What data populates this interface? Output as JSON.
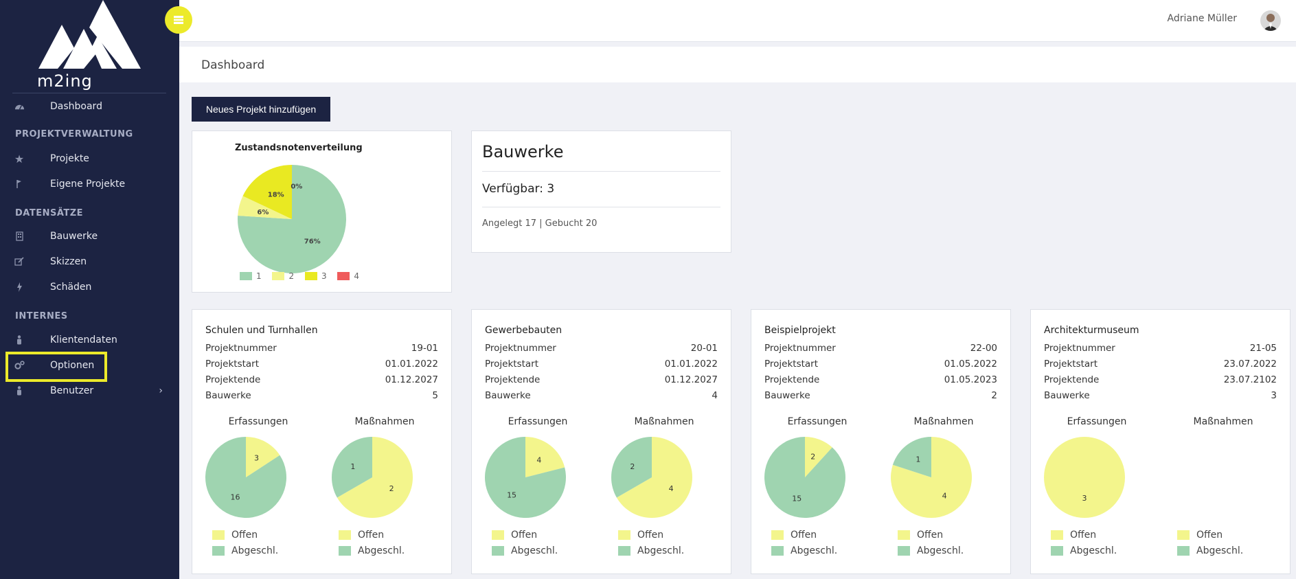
{
  "brand": {
    "name": "m2ing"
  },
  "colors": {
    "sidebar": "#1c2342",
    "accent": "#ecea2a",
    "green": "#9fd4b0",
    "lightYellow": "#f3f58c",
    "yellow": "#e9e922",
    "red": "#ef5b5b"
  },
  "topbar": {
    "menu_icon": "menu-icon",
    "user_name": "Adriane Müller"
  },
  "sidebar": {
    "dashboard": "Dashboard",
    "sections": [
      "PROJEKTVERWALTUNG",
      "DATENSÄTZE",
      "INTERNES"
    ],
    "projektverwaltung": [
      {
        "label": "Projekte",
        "icon": "star-icon"
      },
      {
        "label": "Eigene Projekte",
        "icon": "flag-icon"
      }
    ],
    "datensaetze": [
      {
        "label": "Bauwerke",
        "icon": "building-icon"
      },
      {
        "label": "Skizzen",
        "icon": "edit-icon"
      },
      {
        "label": "Schäden",
        "icon": "bolt-icon"
      }
    ],
    "internes": [
      {
        "label": "Klientendaten",
        "icon": "person-icon"
      },
      {
        "label": "Optionen",
        "icon": "gears-icon"
      },
      {
        "label": "Benutzer",
        "icon": "person-icon"
      }
    ]
  },
  "page": {
    "title": "Dashboard",
    "new_project_button": "Neues Projekt hinzufügen"
  },
  "chart_data": {
    "type": "pie",
    "title": "Zustandsnotenverteilung",
    "categories": [
      "1",
      "2",
      "3",
      "4"
    ],
    "values": [
      76,
      6,
      18,
      0
    ],
    "labels": [
      "76%",
      "6%",
      "18%",
      "0%"
    ]
  },
  "bauwerke": {
    "title": "Bauwerke",
    "available": "Verfügbar: 3",
    "details": "Angelegt 17 | Gebucht 20"
  },
  "projects_labels": {
    "number": "Projektnummer",
    "start": "Projektstart",
    "end": "Projektende",
    "buildings": "Bauwerke",
    "erfassungen": "Erfassungen",
    "massnahmen": "Maßnahmen",
    "offen": "Offen",
    "abgeschl": "Abgeschl."
  },
  "projects": [
    {
      "name": "Schulen und Turnhallen",
      "number": "19-01",
      "start": "01.01.2022",
      "end": "01.12.2027",
      "buildings": "5",
      "erfassungen": {
        "offen": 3,
        "abgeschl": 16
      },
      "massnahmen": {
        "offen": 2,
        "abgeschl": 1
      }
    },
    {
      "name": "Gewerbebauten",
      "number": "20-01",
      "start": "01.01.2022",
      "end": "01.12.2027",
      "buildings": "4",
      "erfassungen": {
        "offen": 4,
        "abgeschl": 15
      },
      "massnahmen": {
        "offen": 4,
        "abgeschl": 2
      }
    },
    {
      "name": "Beispielprojekt",
      "number": "22-00",
      "start": "01.05.2022",
      "end": "01.05.2023",
      "buildings": "2",
      "erfassungen": {
        "offen": 2,
        "abgeschl": 15
      },
      "massnahmen": {
        "offen": 4,
        "abgeschl": 1
      }
    },
    {
      "name": "Architekturmuseum",
      "number": "21-05",
      "start": "23.07.2022",
      "end": "23.07.2102",
      "buildings": "3",
      "erfassungen": {
        "offen": 3,
        "abgeschl": 0
      },
      "massnahmen": null
    }
  ]
}
